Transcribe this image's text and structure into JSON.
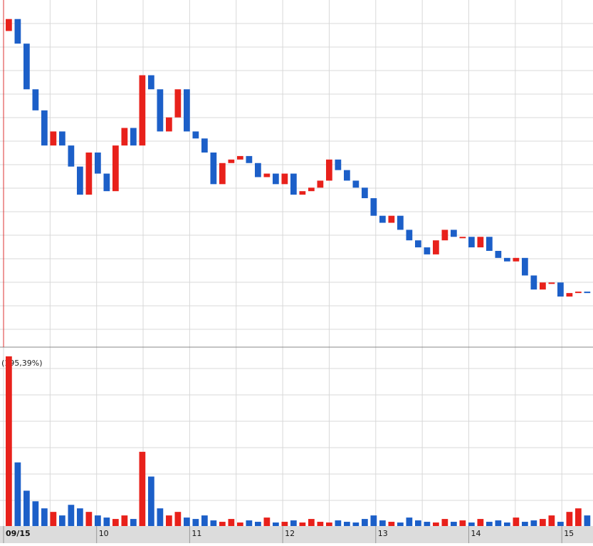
{
  "chart_data": {
    "type": "candlestick",
    "volume_label": "(195,39%)",
    "day_labels": [
      "09/15",
      "10",
      "11",
      "12",
      "13",
      "14",
      "15"
    ],
    "up_color": "#e8211b",
    "down_color": "#1c5fc8",
    "ylim": [
      0,
      487
    ],
    "volume_ylim": [
      0,
      250
    ],
    "open": [
      450,
      467,
      432,
      367,
      337,
      287,
      307,
      287,
      257,
      217,
      277,
      247,
      222,
      287,
      312,
      287,
      387,
      367,
      307,
      327,
      367,
      307,
      297,
      277,
      232,
      262,
      267,
      272,
      262,
      242,
      247,
      232,
      247,
      217,
      222,
      227,
      237,
      267,
      252,
      237,
      227,
      212,
      187,
      177,
      187,
      167,
      152,
      142,
      132,
      152,
      167,
      157,
      157,
      142,
      157,
      137,
      127,
      122,
      127,
      102,
      82,
      92,
      92,
      72,
      77,
      79
    ],
    "close": [
      467,
      432,
      367,
      337,
      287,
      307,
      287,
      257,
      217,
      277,
      247,
      222,
      287,
      312,
      287,
      387,
      367,
      307,
      327,
      367,
      307,
      297,
      277,
      232,
      262,
      267,
      272,
      262,
      242,
      247,
      232,
      247,
      217,
      222,
      227,
      237,
      267,
      252,
      237,
      227,
      212,
      187,
      177,
      187,
      167,
      152,
      142,
      132,
      152,
      167,
      157,
      157,
      142,
      157,
      137,
      127,
      122,
      127,
      102,
      82,
      92,
      92,
      72,
      77,
      79,
      77
    ],
    "volume": [
      240,
      90,
      50,
      35,
      25,
      20,
      15,
      30,
      25,
      20,
      15,
      12,
      10,
      15,
      10,
      105,
      70,
      25,
      15,
      20,
      12,
      10,
      15,
      8,
      6,
      10,
      5,
      8,
      6,
      12,
      5,
      6,
      8,
      5,
      10,
      6,
      5,
      8,
      6,
      5,
      10,
      15,
      8,
      6,
      5,
      12,
      8,
      6,
      5,
      10,
      6,
      8,
      5,
      10,
      6,
      8,
      5,
      12,
      6,
      8,
      10,
      15,
      6,
      20,
      25,
      15
    ]
  }
}
